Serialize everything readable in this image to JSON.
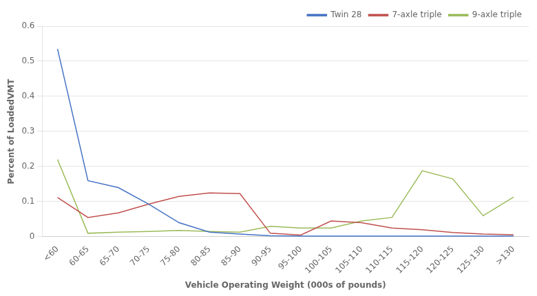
{
  "chart_data": {
    "type": "line",
    "categories": [
      "<60",
      "60-65",
      "65-70",
      "70-75",
      "75-80",
      "80-85",
      "85-90",
      "90-95",
      "95-100",
      "100-105",
      "105-110",
      "110-115",
      "115-120",
      "120-125",
      "125-130",
      ">130"
    ],
    "series": [
      {
        "name": "Twin 28",
        "color": "#4472C4",
        "values": [
          0.535,
          0.16,
          0.14,
          0.093,
          0.04,
          0.013,
          0.008,
          0.003,
          0.002,
          0.002,
          0.002,
          0.002,
          0.002,
          0.002,
          0.002,
          0.002
        ]
      },
      {
        "name": "7-axle triple",
        "color": "#C0504D",
        "values": [
          0.112,
          0.055,
          0.068,
          0.093,
          0.115,
          0.125,
          0.123,
          0.01,
          0.005,
          0.045,
          0.04,
          0.025,
          0.02,
          0.012,
          0.008,
          0.006
        ]
      },
      {
        "name": "9-axle triple",
        "color": "#9BBB59",
        "values": [
          0.22,
          0.01,
          0.013,
          0.015,
          0.018,
          0.015,
          0.013,
          0.03,
          0.025,
          0.025,
          0.045,
          0.055,
          0.188,
          0.165,
          0.06,
          0.113
        ]
      }
    ],
    "xlabel": "Vehicle Operating Weight (000s of pounds)",
    "ylabel": "Percent of LoadedVMT",
    "ylim": [
      0,
      0.6
    ],
    "yticks": [
      0,
      0.1,
      0.2,
      0.3,
      0.4,
      0.5,
      0.6
    ],
    "grid": true,
    "legend": "upper right"
  }
}
